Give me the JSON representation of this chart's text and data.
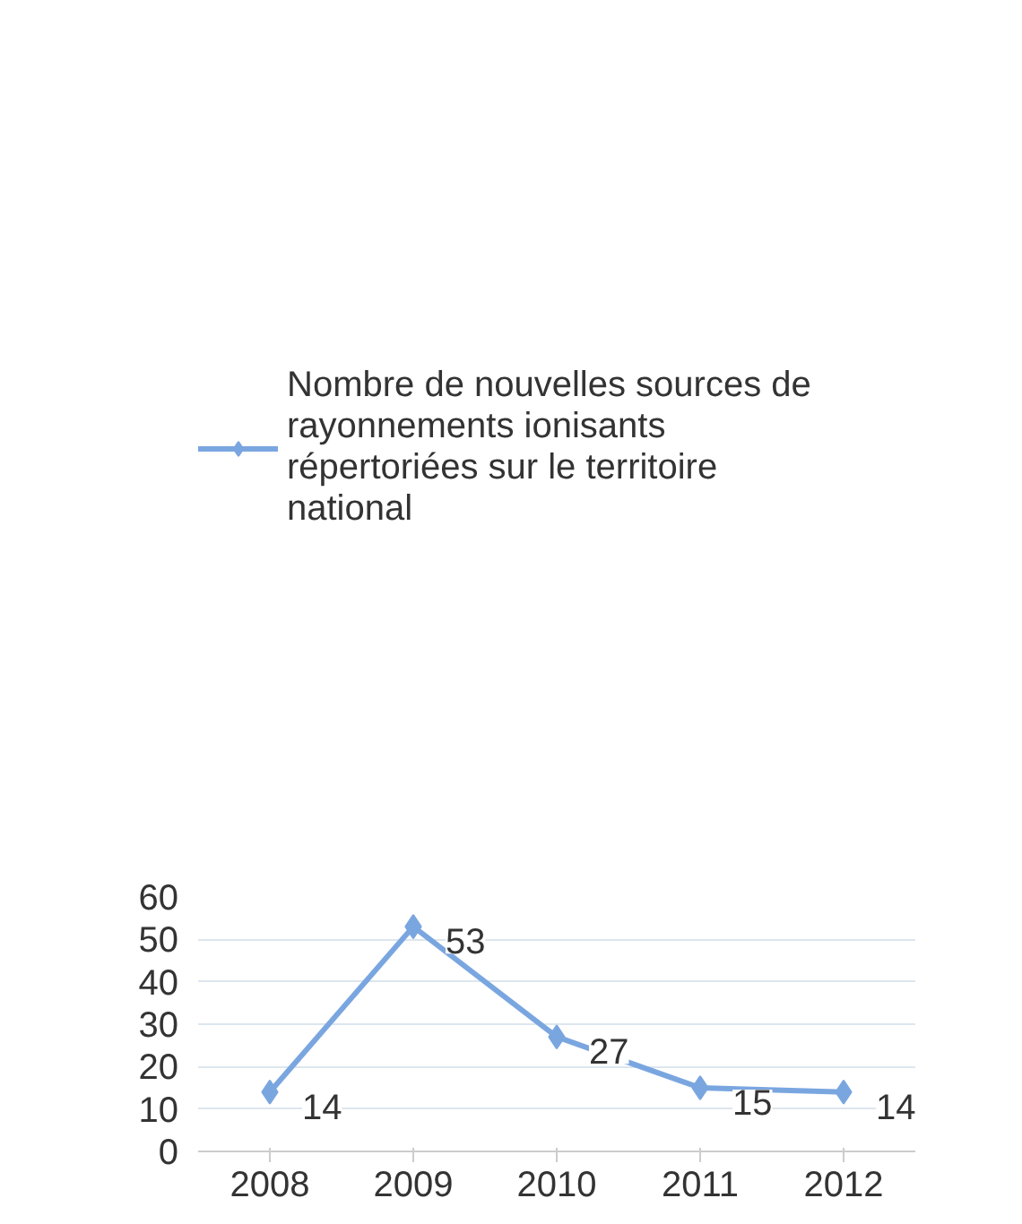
{
  "chart_data": {
    "type": "line",
    "categories": [
      "2008",
      "2009",
      "2010",
      "2011",
      "2012"
    ],
    "series": [
      {
        "name": "Nombre de nouvelles sources de rayonnements ionisants répertoriées sur le territoire national",
        "color": "#7aa6e0",
        "values": [
          14,
          53,
          27,
          15,
          14
        ]
      }
    ],
    "ylim": [
      0,
      60
    ],
    "yticks": [
      0,
      10,
      20,
      30,
      40,
      50,
      60
    ],
    "grid": "y",
    "legend": "top",
    "marker": "diamond",
    "line_style": "solid",
    "data_labels": true
  }
}
